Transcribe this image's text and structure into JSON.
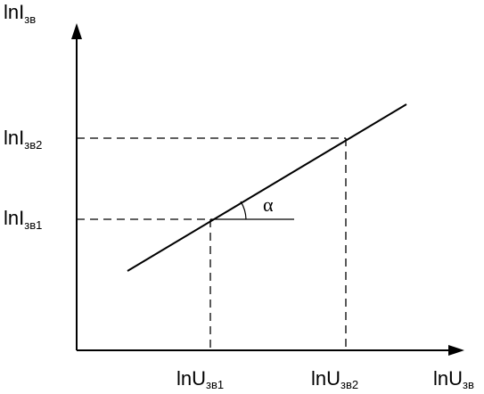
{
  "diagram": {
    "y_axis": {
      "main": "lnI",
      "sub": "зв"
    },
    "x_axis": {
      "main": "lnU",
      "sub": "зв"
    },
    "y_ticks": [
      {
        "main": "lnI",
        "sub": "зв2"
      },
      {
        "main": "lnI",
        "sub": "зв1"
      }
    ],
    "x_ticks": [
      {
        "main": "lnU",
        "sub": "зв1"
      },
      {
        "main": "lnU",
        "sub": "зв2"
      }
    ],
    "angle_label": "α",
    "line_color": "#000000"
  }
}
